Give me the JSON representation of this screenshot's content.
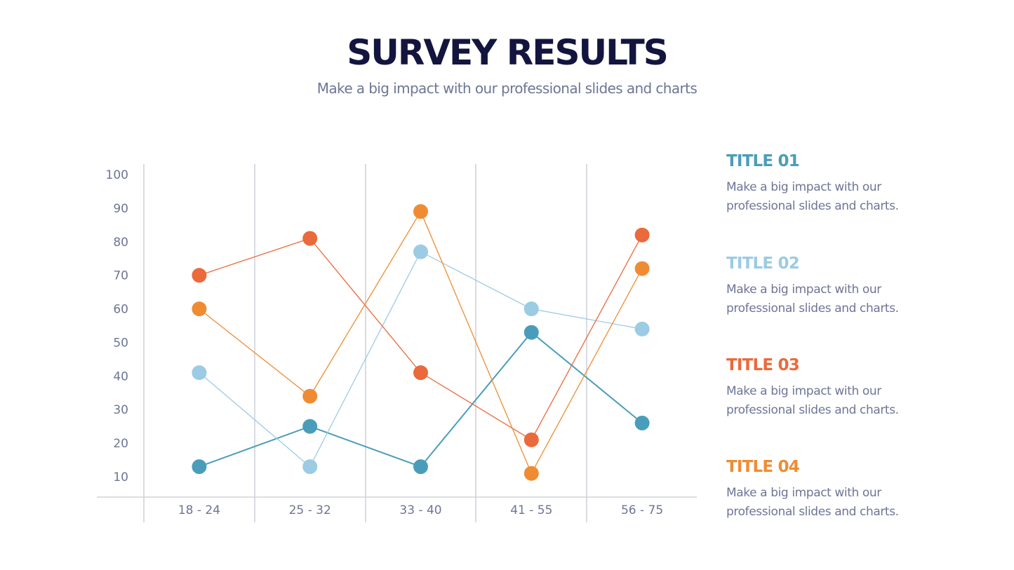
{
  "header": {
    "title": "SURVEY RESULTS",
    "subtitle": "Make a big impact with our professional slides and charts"
  },
  "legend": [
    {
      "title": "TITLE 01",
      "description": "Make a big impact with our professional slides and charts.",
      "color": "#4a9dba"
    },
    {
      "title": "TITLE 02",
      "description": "Make a big impact with our professional slides and charts.",
      "color": "#9ccbe4"
    },
    {
      "title": "TITLE 03",
      "description": "Make a big impact with our professional slides and charts.",
      "color": "#ea6a3b"
    },
    {
      "title": "TITLE 04",
      "description": "Make a big impact with our professional slides and charts.",
      "color": "#ef8c33"
    }
  ],
  "chart_data": {
    "type": "line",
    "title": "",
    "xlabel": "",
    "ylabel": "",
    "categories": [
      "18 - 24",
      "25 - 32",
      "33 - 40",
      "41 - 55",
      "56 - 75"
    ],
    "yticks": [
      10,
      20,
      30,
      40,
      50,
      60,
      70,
      80,
      90,
      100
    ],
    "ylim": [
      0,
      100
    ],
    "grid": "vertical",
    "legend_position": "right",
    "series": [
      {
        "name": "TITLE 01",
        "color": "#4a9dba",
        "values": [
          13,
          25,
          13,
          53,
          26
        ]
      },
      {
        "name": "TITLE 02",
        "color": "#9ccbe4",
        "values": [
          41,
          13,
          77,
          60,
          54
        ]
      },
      {
        "name": "TITLE 03",
        "color": "#ea6a3b",
        "values": [
          70,
          81,
          41,
          21,
          82
        ]
      },
      {
        "name": "TITLE 04",
        "color": "#ef8c33",
        "values": [
          60,
          34,
          89,
          11,
          72
        ]
      }
    ]
  }
}
